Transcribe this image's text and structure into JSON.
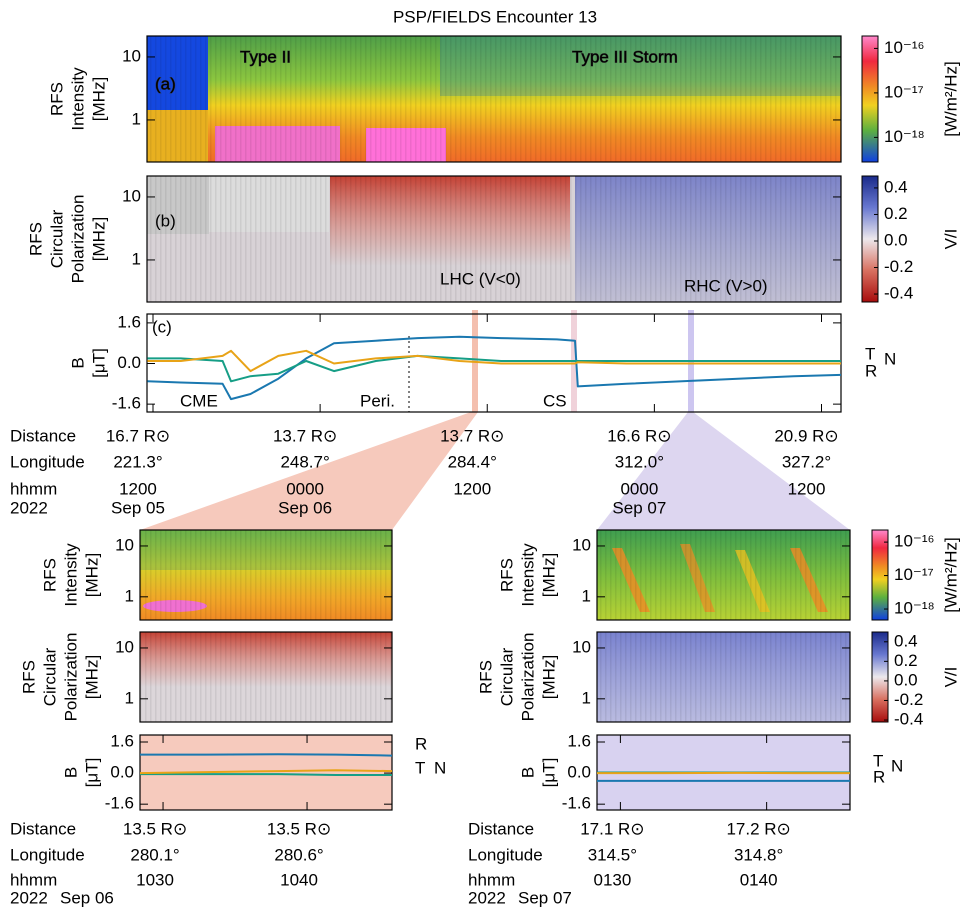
{
  "chart_data": [
    {
      "type": "spectrogram",
      "title": "PSP/FIELDS Encounter 13",
      "ylabel": [
        "RFS",
        "Intensity",
        "[MHz]"
      ],
      "ylog": true,
      "ylim": [
        0.215,
        21.5
      ],
      "yticks": [
        1,
        10
      ],
      "clog": true,
      "clim": [
        2.8e-19,
        1.9e-16
      ],
      "cticks": [
        {
          "value": 1e-16,
          "label": "10⁻¹⁶"
        },
        {
          "value": 1e-17,
          "label": "10⁻¹⁷"
        },
        {
          "value": 1e-18,
          "label": "10⁻¹⁸"
        }
      ],
      "clabel": "[W/m²/Hz]",
      "annotations": [
        "(a)",
        "Type II",
        "Type III Storm"
      ]
    },
    {
      "type": "spectrogram",
      "ylabel": [
        "RFS",
        "Circular",
        "Polarization",
        "[MHz]"
      ],
      "ylog": true,
      "ylim": [
        0.215,
        21.5
      ],
      "yticks": [
        1,
        10
      ],
      "clog": false,
      "clim": [
        -0.46,
        0.49
      ],
      "cticks": [
        0.4,
        0.2,
        {
          "value": 0,
          "label": "0.0"
        },
        -0.2,
        -0.4
      ],
      "clabel": "V/I",
      "annotations": [
        "(b)",
        "LHC (V<0)",
        "RHC (V>0)"
      ]
    },
    {
      "type": "line",
      "ylabel": [
        "B",
        "[μT]"
      ],
      "ylim": [
        -1.91,
        1.95
      ],
      "yticks": [
        1.6,
        {
          "value": 0,
          "label": "0.0"
        },
        -1.6
      ],
      "x": [
        11.6,
        14,
        17,
        17.6,
        19,
        21,
        23,
        25,
        28,
        31,
        34,
        37,
        41,
        42.3,
        42.5,
        46,
        50,
        54,
        58,
        61.4
      ],
      "xlim": [
        11.57,
        61.4
      ],
      "xticks": [
        {
          "value": 12,
          "label": "1200"
        },
        {
          "value": 24,
          "label": "0000"
        },
        {
          "value": 36,
          "label": "1200"
        },
        {
          "value": 48,
          "label": "0000"
        },
        {
          "value": 60,
          "label": "1200"
        }
      ],
      "rows": [
        {
          "name": "Distance",
          "labels": [
            "16.7 R⊙",
            "13.7 R⊙",
            "13.7 R⊙",
            "16.6 R⊙",
            "20.9 R⊙"
          ]
        },
        {
          "name": "Longitude",
          "labels": [
            "221.3°",
            "248.7°",
            "284.4°",
            "312.0°",
            "327.2°"
          ]
        }
      ],
      "xlabel": "hhmm",
      "year": "2022",
      "dates": [
        "Sep 05",
        "Sep 06",
        null,
        "Sep 07",
        null
      ],
      "series": [
        {
          "name": "R",
          "color": "#1a78b0",
          "values": [
            -0.7,
            -0.75,
            -0.8,
            -1.4,
            -1.2,
            -0.6,
            0.2,
            0.8,
            0.9,
            1.0,
            1.05,
            1.0,
            0.95,
            0.9,
            -0.9,
            -0.8,
            -0.7,
            -0.6,
            -0.5,
            -0.45
          ]
        },
        {
          "name": "T",
          "color": "#169e86",
          "values": [
            0.2,
            0.2,
            0.1,
            -0.7,
            -0.5,
            -0.4,
            0.1,
            -0.3,
            0.1,
            0.3,
            0.2,
            0.1,
            0.1,
            0.1,
            0.1,
            0.1,
            0.1,
            0.1,
            0.1,
            0.1
          ]
        },
        {
          "name": "N",
          "color": "#e8a317",
          "values": [
            0.1,
            0.1,
            0.3,
            0.5,
            -0.3,
            0.3,
            0.5,
            0.0,
            0.2,
            0.3,
            0.1,
            0.0,
            0.0,
            0.0,
            0.05,
            0.0,
            0.0,
            0.0,
            0.0,
            0.0
          ]
        }
      ],
      "annotations": [
        "(c)",
        "CME",
        "Peri.",
        "CS"
      ]
    },
    {
      "type": "spectrogram",
      "ylabel": [
        "RFS",
        "Intensity",
        "[MHz]"
      ],
      "ylog": true,
      "ylim": [
        0.35,
        20.6
      ],
      "yticks": [
        1,
        10
      ]
    },
    {
      "type": "spectrogram",
      "ylabel": [
        "RFS",
        "Circular",
        "Polarization",
        "[MHz]"
      ],
      "ylog": true,
      "ylim": [
        0.35,
        20.6
      ],
      "yticks": [
        1,
        10
      ]
    },
    {
      "type": "line",
      "ylabel": [
        "B",
        "[μT]"
      ],
      "ylim": [
        -1.9,
        1.96
      ],
      "yticks": [
        1.6,
        {
          "value": 0,
          "label": "0.0"
        },
        -1.6
      ],
      "x": [
        28.4,
        33,
        38,
        42,
        45.9
      ],
      "xlim": [
        28.4,
        45.9
      ],
      "xticks": [
        {
          "value": 30,
          "label": "1030"
        },
        {
          "value": 40,
          "label": "1040"
        }
      ],
      "rows": [
        {
          "name": "Distance",
          "labels": [
            "13.5 R⊙",
            "13.5 R⊙"
          ]
        },
        {
          "name": "Longitude",
          "labels": [
            "280.1°",
            "280.6°"
          ]
        }
      ],
      "xlabel": "hhmm",
      "year": "2022",
      "date": "Sep 06",
      "series": [
        {
          "name": "R",
          "color": "#1a78b0",
          "values": [
            0.95,
            0.95,
            0.97,
            0.95,
            0.9
          ]
        },
        {
          "name": "T",
          "color": "#169e86",
          "values": [
            -0.05,
            -0.05,
            -0.05,
            -0.1,
            -0.1
          ]
        },
        {
          "name": "N",
          "color": "#e8a317",
          "values": [
            0.0,
            0.05,
            0.1,
            0.15,
            0.1
          ]
        }
      ]
    },
    {
      "type": "spectrogram",
      "ylabel": [
        "RFS",
        "Intensity",
        "[MHz]"
      ],
      "ylog": true,
      "ylim": [
        0.35,
        20.6
      ],
      "yticks": [
        1,
        10
      ],
      "clog": true,
      "clim": [
        4.7e-19,
        2.3e-16
      ],
      "cticks": [
        {
          "value": 1e-16,
          "label": "10⁻¹⁶"
        },
        {
          "value": 1e-17,
          "label": "10⁻¹⁷"
        },
        {
          "value": 1e-18,
          "label": "10⁻¹⁸"
        }
      ],
      "clabel": "[W/m²/Hz]"
    },
    {
      "type": "spectrogram",
      "ylabel": [
        "RFS",
        "Circular",
        "Polarization",
        "[MHz]"
      ],
      "ylog": true,
      "ylim": [
        0.35,
        20.6
      ],
      "yticks": [
        1,
        10
      ],
      "clog": false,
      "clim": [
        -0.42,
        0.5
      ],
      "cticks": [
        0.4,
        0.2,
        {
          "value": 0,
          "label": "0.0"
        },
        -0.2,
        -0.4
      ],
      "clabel": "V/I"
    },
    {
      "type": "line",
      "ylabel": [
        "B",
        "[μT]"
      ],
      "ylim": [
        -1.9,
        1.96
      ],
      "yticks": [
        1.6,
        {
          "value": 0,
          "label": "0.0"
        },
        -1.6
      ],
      "x": [
        28.4,
        33,
        38,
        42,
        45.7
      ],
      "xlim": [
        28.4,
        45.7
      ],
      "xticks": [
        {
          "value": 30,
          "label": "0130"
        },
        {
          "value": 40,
          "label": "0140"
        }
      ],
      "rows": [
        {
          "name": "Distance",
          "labels": [
            "17.1 R⊙",
            "17.2 R⊙"
          ]
        },
        {
          "name": "Longitude",
          "labels": [
            "314.5°",
            "314.8°"
          ]
        }
      ],
      "xlabel": "hhmm",
      "year": "2022",
      "date": "Sep 07",
      "series": [
        {
          "name": "R",
          "color": "#1a78b0",
          "values": [
            -0.4,
            -0.4,
            -0.4,
            -0.4,
            -0.4
          ]
        },
        {
          "name": "T",
          "color": "#169e86",
          "values": [
            0.03,
            0.03,
            0.03,
            0.03,
            0.03
          ]
        },
        {
          "name": "N",
          "color": "#e8a317",
          "values": [
            0.0,
            0.0,
            0.01,
            0.0,
            0.0
          ]
        }
      ]
    }
  ]
}
